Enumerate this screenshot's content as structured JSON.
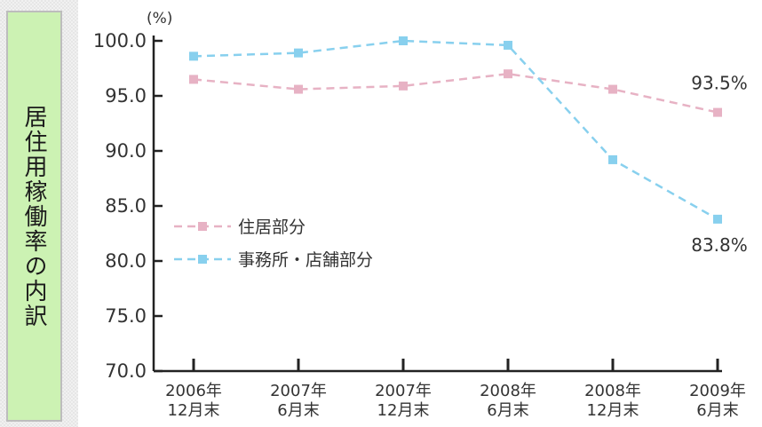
{
  "side_label": "居住用稼働率の内訳",
  "chart_data": {
    "type": "line",
    "title": "",
    "xlabel": "",
    "ylabel": "(%)",
    "ylim": [
      70,
      100
    ],
    "yticks": [
      "70.0",
      "75.0",
      "80.0",
      "85.0",
      "90.0",
      "95.0",
      "100.0"
    ],
    "categories": [
      [
        "2006年",
        "12月末"
      ],
      [
        "2007年",
        "6月末"
      ],
      [
        "2007年",
        "12月末"
      ],
      [
        "2008年",
        "6月末"
      ],
      [
        "2008年",
        "12月末"
      ],
      [
        "2009年",
        "6月末"
      ]
    ],
    "series": [
      {
        "name": "住居部分",
        "values": [
          96.5,
          95.6,
          95.9,
          97.0,
          95.6,
          93.5
        ],
        "color": "#e7b2c4",
        "end_label": "93.5%"
      },
      {
        "name": "事務所・店舗部分",
        "values": [
          98.6,
          98.9,
          100.0,
          99.6,
          89.2,
          83.8
        ],
        "color": "#88d0ee",
        "end_label": "83.8%"
      }
    ],
    "legend_position": "center-left",
    "grid": false
  }
}
